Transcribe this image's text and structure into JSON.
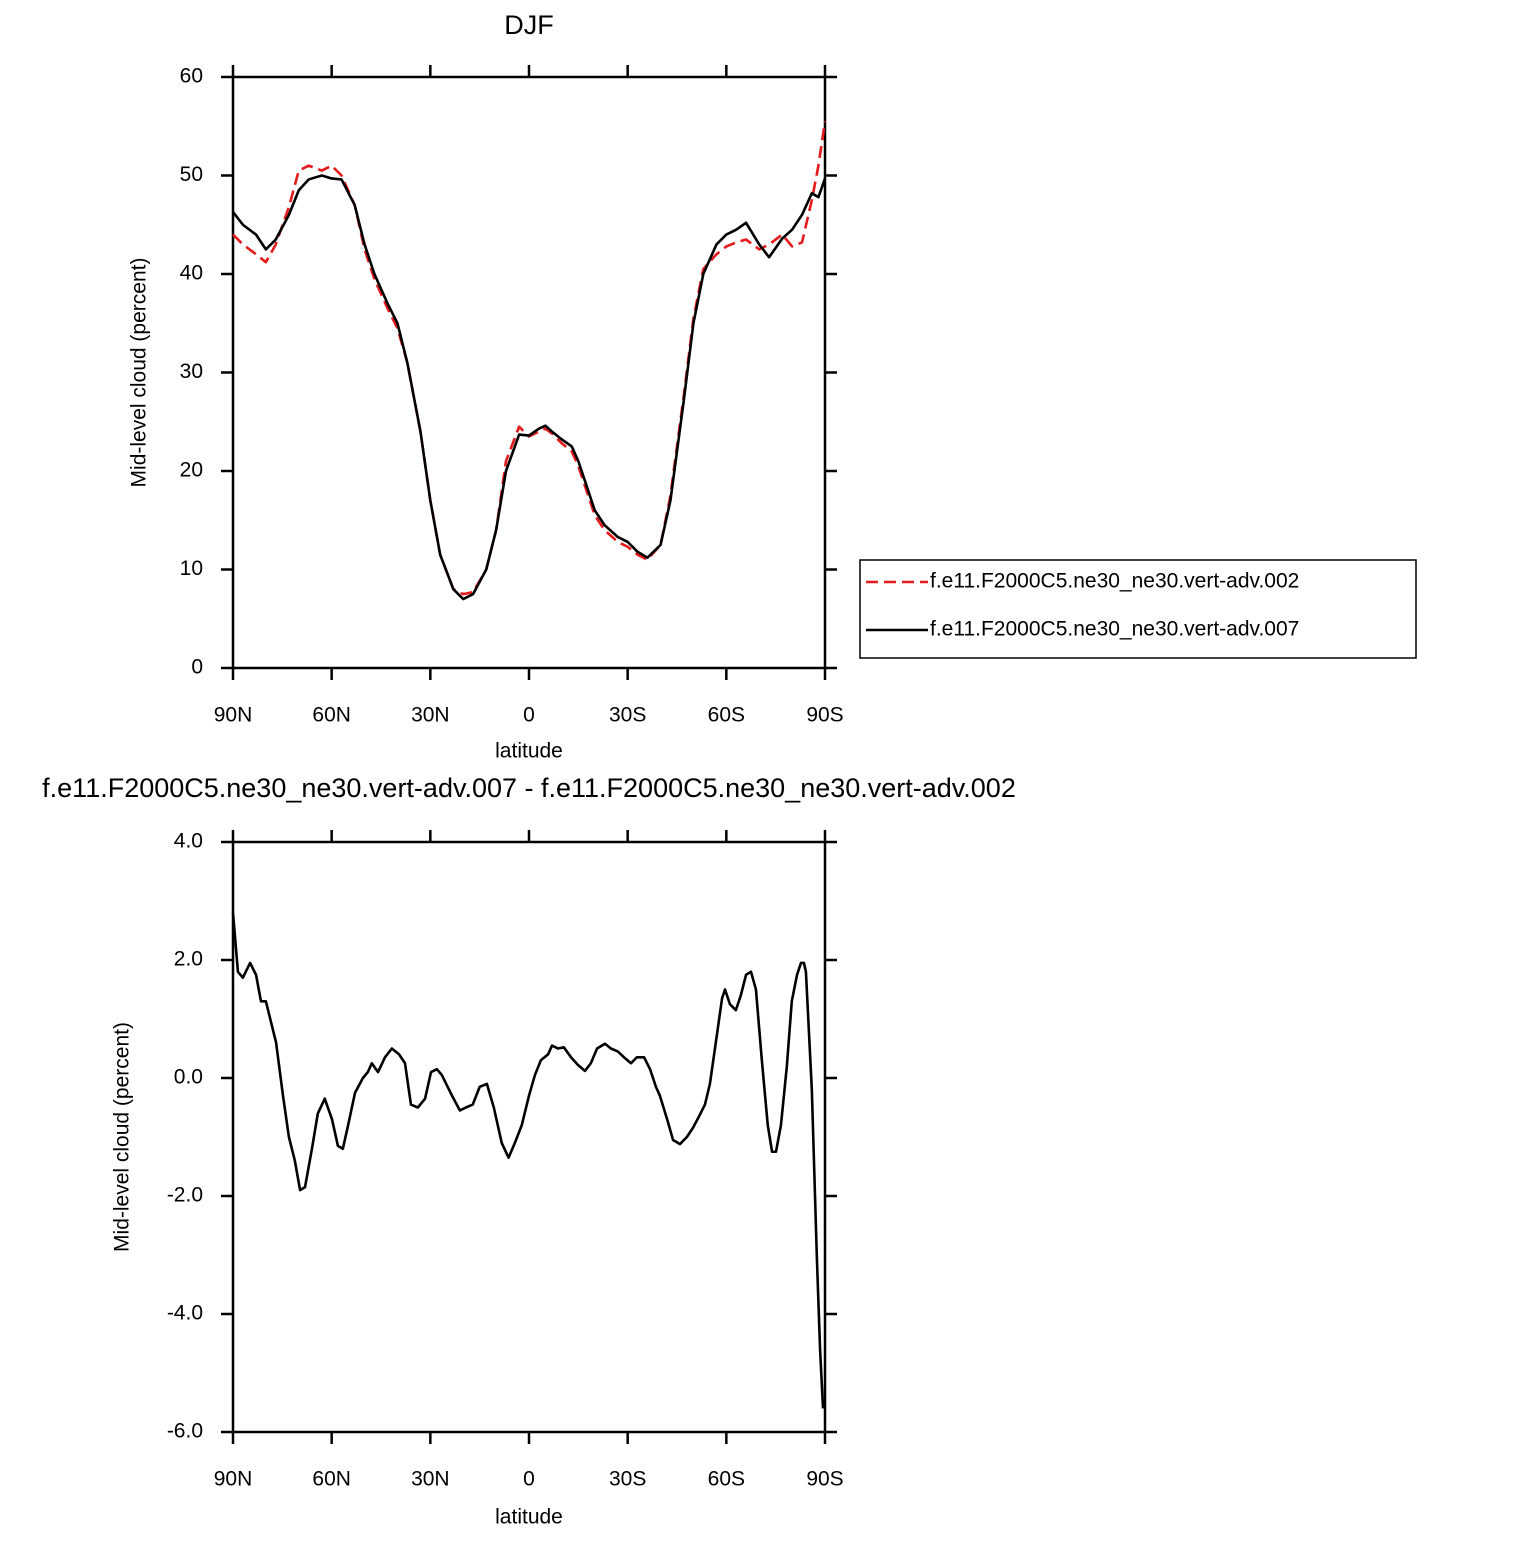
{
  "chart_data": [
    {
      "type": "line",
      "title": "DJF",
      "xlabel": "latitude",
      "ylabel": "Mid-level cloud (percent)",
      "xlim": [
        90,
        -90
      ],
      "xticks": [
        {
          "value": 90,
          "label": "90N"
        },
        {
          "value": 60,
          "label": "60N"
        },
        {
          "value": 30,
          "label": "30N"
        },
        0,
        {
          "value": -30,
          "label": "30S"
        },
        {
          "value": -60,
          "label": "60S"
        },
        {
          "value": -90,
          "label": "90S"
        }
      ],
      "ylim": [
        0,
        60
      ],
      "yticks": [
        0,
        10,
        20,
        30,
        40,
        50,
        60
      ],
      "legend": "right",
      "x": [
        90,
        87,
        83,
        80,
        77,
        73,
        70,
        67,
        63,
        60,
        57,
        53,
        50,
        47,
        43,
        40,
        37,
        33,
        30,
        27,
        23,
        20,
        17,
        13,
        10,
        7,
        3,
        0,
        -3,
        -5,
        -7,
        -10,
        -13,
        -15,
        -18,
        -20,
        -23,
        -27,
        -30,
        -33,
        -36,
        -40,
        -43,
        -47,
        -50,
        -53,
        -57,
        -60,
        -63,
        -66,
        -70,
        -73,
        -77,
        -80,
        -83,
        -86,
        -88,
        -90
      ],
      "series": [
        {
          "name": "f.e11.F2000C5.ne30_ne30.vert-adv.002",
          "color": "#e41a1c",
          "linestyle": "dashed",
          "values": [
            44,
            43,
            42,
            41.2,
            43,
            46.8,
            50.5,
            51,
            50.5,
            51,
            50,
            47,
            42.5,
            39.5,
            36.5,
            34.5,
            31,
            24,
            17,
            11.5,
            8,
            7.5,
            7.7,
            10,
            14,
            21,
            24.5,
            23.5,
            24,
            24.3,
            23.8,
            22.8,
            22,
            20.5,
            17.5,
            15.5,
            14,
            12.8,
            12.3,
            11.5,
            11,
            12.5,
            17.5,
            27.5,
            35.5,
            40.5,
            42,
            42.8,
            43.2,
            43.5,
            42.5,
            43,
            44,
            42.8,
            43.2,
            47.5,
            51,
            55.5
          ]
        },
        {
          "name": "f.e11.F2000C5.ne30_ne30.vert-adv.007",
          "color": "#000000",
          "linestyle": "solid",
          "values": [
            46.3,
            45,
            44,
            42.5,
            43.5,
            46,
            48.5,
            49.6,
            50,
            49.7,
            49.6,
            47,
            43,
            40,
            37,
            35,
            31,
            24,
            17,
            11.5,
            8,
            7,
            7.5,
            10,
            14,
            20,
            23.7,
            23.6,
            24.3,
            24.6,
            24,
            23.2,
            22.5,
            21,
            18,
            16,
            14.5,
            13.3,
            12.8,
            11.8,
            11.2,
            12.5,
            17,
            27,
            35,
            40,
            43,
            44,
            44.5,
            45.2,
            43,
            41.7,
            43.6,
            44.5,
            46,
            48.2,
            47.8,
            49.7
          ]
        }
      ]
    },
    {
      "type": "line",
      "title": "f.e11.F2000C5.ne30_ne30.vert-adv.007 - f.e11.F2000C5.ne30_ne30.vert-adv.002",
      "xlabel": "latitude",
      "ylabel": "Mid-level cloud (percent)",
      "xlim": [
        90,
        -90
      ],
      "xticks": [
        {
          "value": 90,
          "label": "90N"
        },
        {
          "value": 60,
          "label": "60N"
        },
        {
          "value": 30,
          "label": "30N"
        },
        0,
        {
          "value": -30,
          "label": "30S"
        },
        {
          "value": -60,
          "label": "60S"
        },
        {
          "value": -90,
          "label": "90S"
        }
      ],
      "ylim": [
        -6,
        4
      ],
      "yticks": [
        {
          "value": -6,
          "label": "-6.0"
        },
        {
          "value": -4,
          "label": "-4.0"
        },
        {
          "value": -2,
          "label": "-2.0"
        },
        {
          "value": 0,
          "label": "0.0"
        },
        {
          "value": 2,
          "label": "2.0"
        },
        {
          "value": 4,
          "label": "4.0"
        }
      ],
      "color": "#000000",
      "x": [
        90,
        88.5,
        87,
        84.8,
        83,
        81.5,
        80,
        76.9,
        74.8,
        73,
        71.2,
        69.6,
        68.1,
        66,
        64.2,
        62.1,
        59.9,
        58.1,
        56.6,
        55,
        52.9,
        50.5,
        49,
        47.8,
        45.9,
        43.8,
        41.7,
        39.5,
        37.7,
        35.9,
        33.8,
        31.6,
        29.8,
        28,
        26.5,
        23.4,
        21,
        19.2,
        17.1,
        15,
        12.8,
        10.7,
        8.3,
        6.2,
        4.3,
        2.2,
        0,
        -1.8,
        -3.6,
        -5.8,
        -7,
        -8.8,
        -10.6,
        -12.8,
        -14.9,
        -17,
        -18.8,
        -20.7,
        -23.1,
        -24.9,
        -27,
        -28.9,
        -31,
        -32.8,
        -35,
        -36.8,
        -38.6,
        -39.8,
        -42,
        -43.8,
        -45.9,
        -48,
        -49.8,
        -51.7,
        -53.5,
        -55,
        -56.8,
        -58.7,
        -59.6,
        -61.1,
        -62.9,
        -64.4,
        -66,
        -67.5,
        -69,
        -70.8,
        -72.6,
        -73.9,
        -75.1,
        -76.6,
        -78.4,
        -79.9,
        -81.5,
        -82.7,
        -83.6,
        -84.2,
        -86,
        -87.5,
        -88.5,
        -89.4
      ],
      "values": [
        2.8,
        1.8,
        1.7,
        1.95,
        1.75,
        1.3,
        1.3,
        0.6,
        -0.3,
        -1.0,
        -1.4,
        -1.9,
        -1.85,
        -1.2,
        -0.6,
        -0.35,
        -0.7,
        -1.15,
        -1.2,
        -0.8,
        -0.25,
        0,
        0.1,
        0.25,
        0.1,
        0.35,
        0.5,
        0.4,
        0.25,
        -0.45,
        -0.5,
        -0.35,
        0.1,
        0.15,
        0.05,
        -0.3,
        -0.55,
        -0.5,
        -0.45,
        -0.15,
        -0.1,
        -0.5,
        -1.1,
        -1.35,
        -1.1,
        -0.8,
        -0.3,
        0.05,
        0.3,
        0.4,
        0.55,
        0.5,
        0.52,
        0.35,
        0.22,
        0.12,
        0.25,
        0.5,
        0.58,
        0.5,
        0.45,
        0.35,
        0.25,
        0.35,
        0.35,
        0.15,
        -0.15,
        -0.3,
        -0.7,
        -1.05,
        -1.12,
        -1.0,
        -0.85,
        -0.65,
        -0.45,
        -0.1,
        0.6,
        1.35,
        1.5,
        1.25,
        1.15,
        1.4,
        1.75,
        1.8,
        1.5,
        0.3,
        -0.8,
        -1.25,
        -1.25,
        -0.8,
        0.2,
        1.3,
        1.75,
        1.95,
        1.95,
        1.8,
        -0.2,
        -3,
        -4.6,
        -5.6
      ]
    }
  ]
}
